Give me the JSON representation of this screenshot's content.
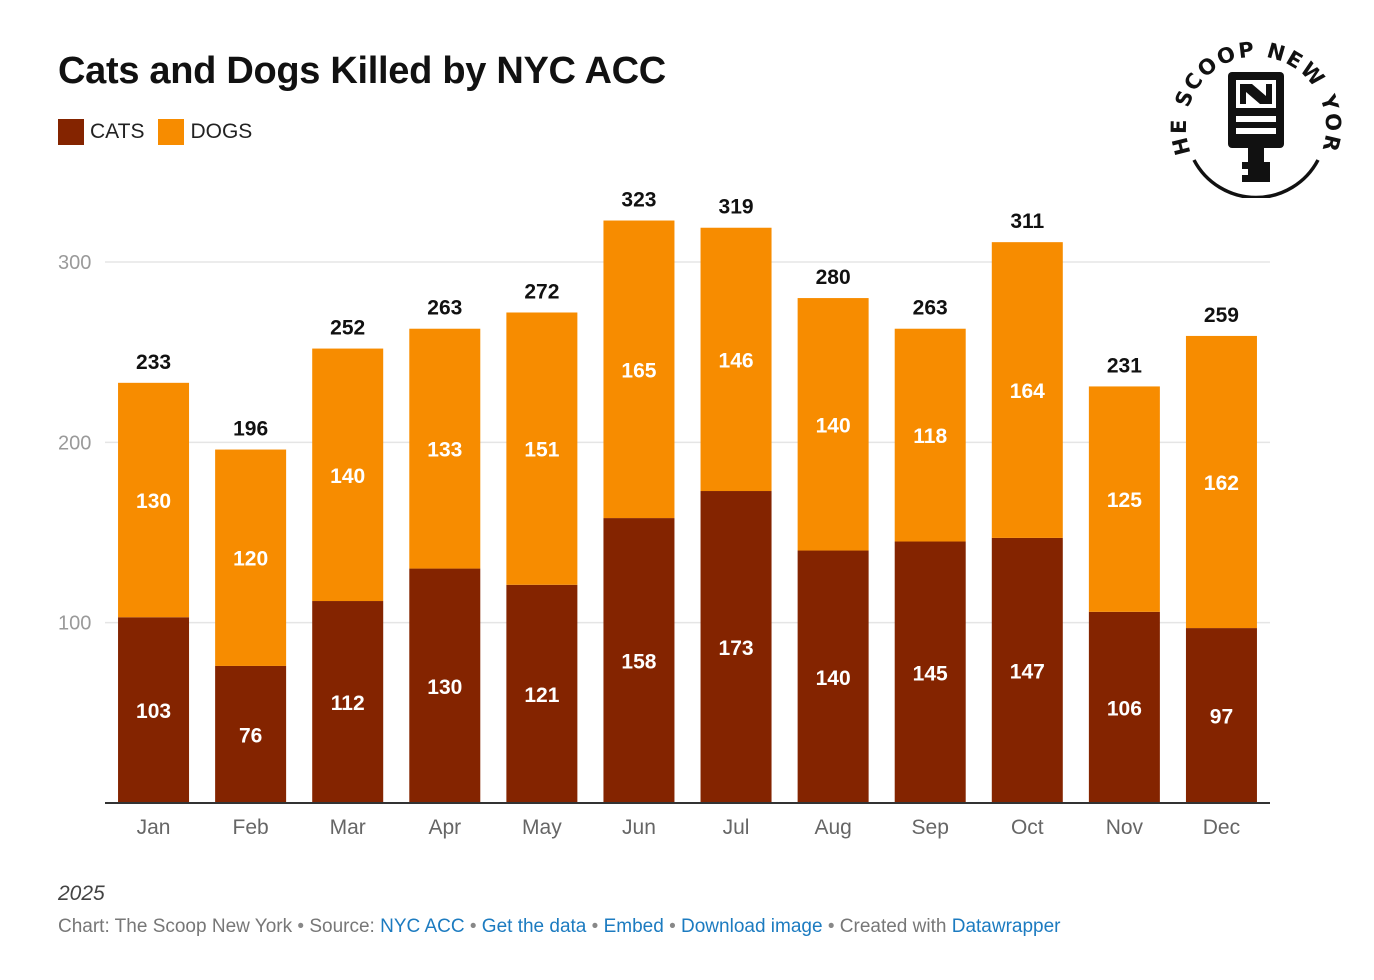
{
  "title": "Cats and Dogs Killed by NYC ACC",
  "colors": {
    "cats": "#842400",
    "dogs": "#f78c00",
    "grid": "#e5e5e5",
    "axis": "#333333",
    "tick_text": "#9a9a9a",
    "category_text": "#666666",
    "total_text": "#111111",
    "segment_text": "#ffffff"
  },
  "legend": {
    "cats_label": "CATS",
    "dogs_label": "DOGS"
  },
  "logo": {
    "text": "THE SCOOP NEW YORK",
    "icon": "scoop-monogram-icon"
  },
  "chart_data": {
    "type": "bar",
    "stacked": true,
    "title": "Cats and Dogs Killed by NYC ACC",
    "xlabel": "",
    "ylabel": "",
    "categories": [
      "Jan",
      "Feb",
      "Mar",
      "Apr",
      "May",
      "Jun",
      "Jul",
      "Aug",
      "Sep",
      "Oct",
      "Nov",
      "Dec"
    ],
    "series": [
      {
        "name": "CATS",
        "values": [
          103,
          76,
          112,
          130,
          121,
          158,
          173,
          140,
          145,
          147,
          106,
          97
        ]
      },
      {
        "name": "DOGS",
        "values": [
          130,
          120,
          140,
          133,
          151,
          165,
          146,
          140,
          118,
          164,
          125,
          162
        ]
      }
    ],
    "totals": [
      233,
      196,
      252,
      263,
      272,
      323,
      319,
      280,
      263,
      311,
      231,
      259
    ],
    "ylim": [
      0,
      300
    ],
    "yticks": [
      100,
      200,
      300
    ],
    "grid": true,
    "legend_position": "top-left"
  },
  "note": "2025",
  "footer": {
    "chart_by": "Chart: The Scoop New York",
    "source_label": "Source:",
    "source_link": "NYC ACC",
    "get_data": "Get the data",
    "embed": "Embed",
    "download": "Download image",
    "created_with": "Created with",
    "datawrapper": "Datawrapper",
    "separator": "•"
  }
}
